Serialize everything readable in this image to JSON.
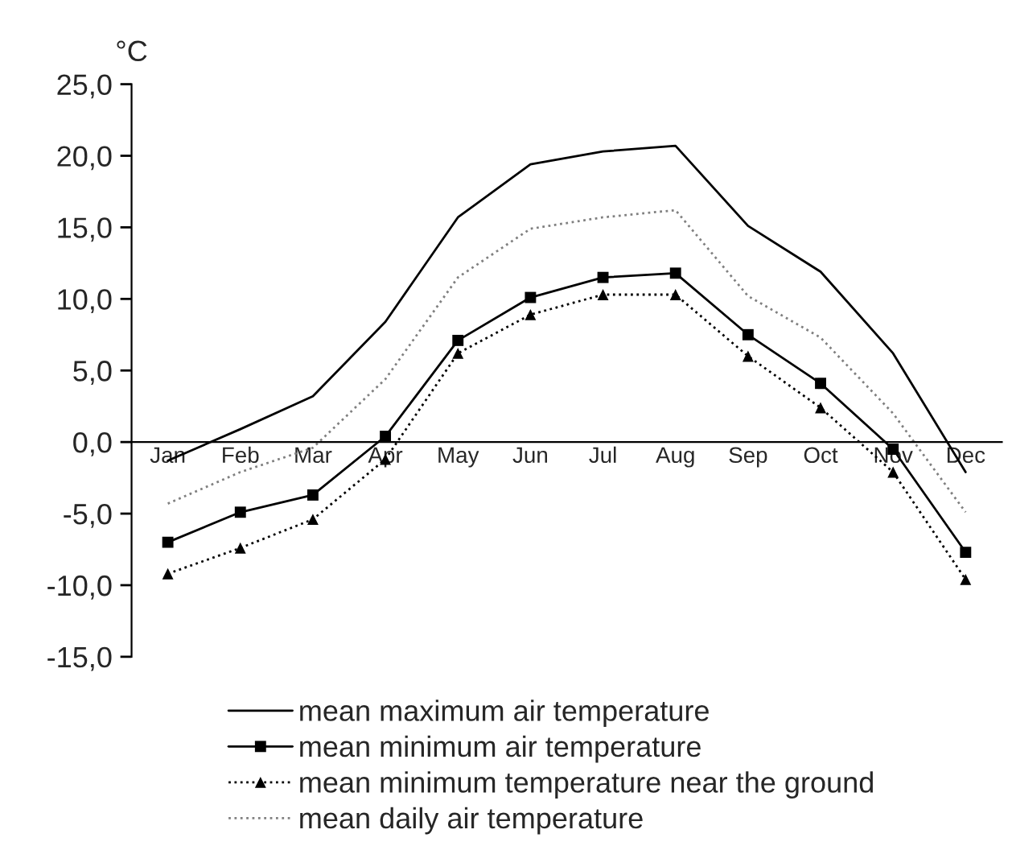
{
  "chart_data": {
    "type": "line",
    "ylabel": "°C",
    "categories": [
      "Jan",
      "Feb",
      "Mar",
      "Apr",
      "May",
      "Jun",
      "Jul",
      "Aug",
      "Sep",
      "Oct",
      "Nov",
      "Dec"
    ],
    "ylim": [
      -15,
      25
    ],
    "yticks": [
      {
        "value": -15,
        "label": "-15,0"
      },
      {
        "value": -10,
        "label": "-10,0"
      },
      {
        "value": -5,
        "label": "-5,0"
      },
      {
        "value": 0,
        "label": "0,0"
      },
      {
        "value": 5,
        "label": "5,0"
      },
      {
        "value": 10,
        "label": "10,0"
      },
      {
        "value": 15,
        "label": "15,0"
      },
      {
        "value": 20,
        "label": "20,0"
      },
      {
        "value": 25,
        "label": "25,0"
      }
    ],
    "grid": false,
    "legend": "bottom",
    "series": [
      {
        "name": "mean maximum air temperature",
        "color": "#000000",
        "marker": "none",
        "line_style": "solid",
        "values": [
          -1.3,
          0.9,
          3.2,
          8.4,
          15.7,
          19.4,
          20.3,
          20.7,
          15.1,
          11.9,
          6.2,
          -2.1
        ]
      },
      {
        "name": "mean minimum air temperature",
        "color": "#000000",
        "marker": "square",
        "line_style": "solid",
        "values": [
          -7.0,
          -4.9,
          -3.7,
          0.4,
          7.1,
          10.1,
          11.5,
          11.8,
          7.5,
          4.1,
          -0.5,
          -7.7
        ]
      },
      {
        "name": "mean minimum temperature near the ground",
        "color": "#000000",
        "marker": "triangle",
        "line_style": "dotted",
        "values": [
          -9.2,
          -7.4,
          -5.4,
          -1.2,
          6.2,
          8.9,
          10.3,
          10.3,
          6.0,
          2.4,
          -2.1,
          -9.6
        ]
      },
      {
        "name": "mean daily air temperature",
        "color": "#808080",
        "marker": "none",
        "line_style": "dotted",
        "values": [
          -4.3,
          -2.1,
          -0.4,
          4.4,
          11.5,
          14.9,
          15.7,
          16.2,
          10.2,
          7.3,
          2.0,
          -4.9
        ]
      }
    ]
  }
}
